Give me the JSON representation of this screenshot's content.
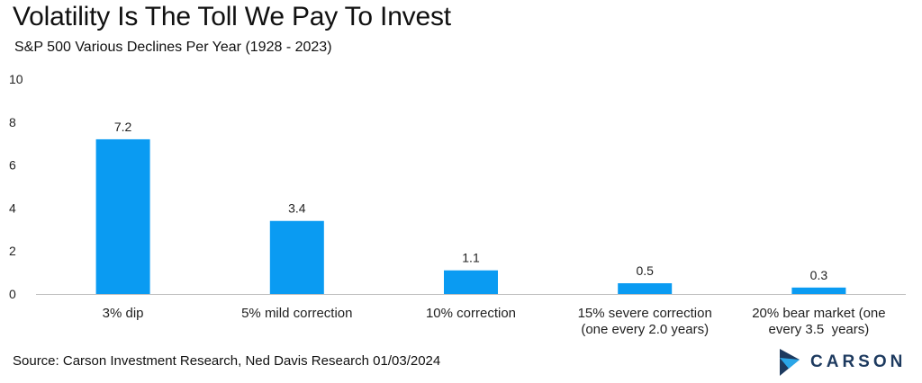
{
  "title": "Volatility Is The Toll We Pay To Invest",
  "subtitle": "S&P 500 Various Declines Per Year (1928 - 2023)",
  "source": "Source: Carson Investment Research, Ned Davis Research 01/03/2024",
  "logo_text": "CARSON",
  "colors": {
    "bar": "#0a9bf2",
    "axis": "#bfbfbf",
    "logo_dark": "#1d3a5f",
    "logo_light": "#2aa6e8"
  },
  "chart_data": {
    "type": "bar",
    "categories": [
      [
        "3% dip"
      ],
      [
        "5% mild correction"
      ],
      [
        "10% correction"
      ],
      [
        "15% severe correction",
        "(one every 2.0 years)"
      ],
      [
        "20% bear market (one",
        "every 3.5  years)"
      ]
    ],
    "values": [
      7.2,
      3.4,
      1.1,
      0.5,
      0.3
    ],
    "data_labels": [
      "7.2",
      "3.4",
      "1.1",
      "0.5",
      "0.3"
    ],
    "yticks": [
      0,
      2,
      4,
      6,
      8,
      10
    ],
    "ylim": [
      0,
      10
    ],
    "grid": false,
    "legend": "none"
  }
}
